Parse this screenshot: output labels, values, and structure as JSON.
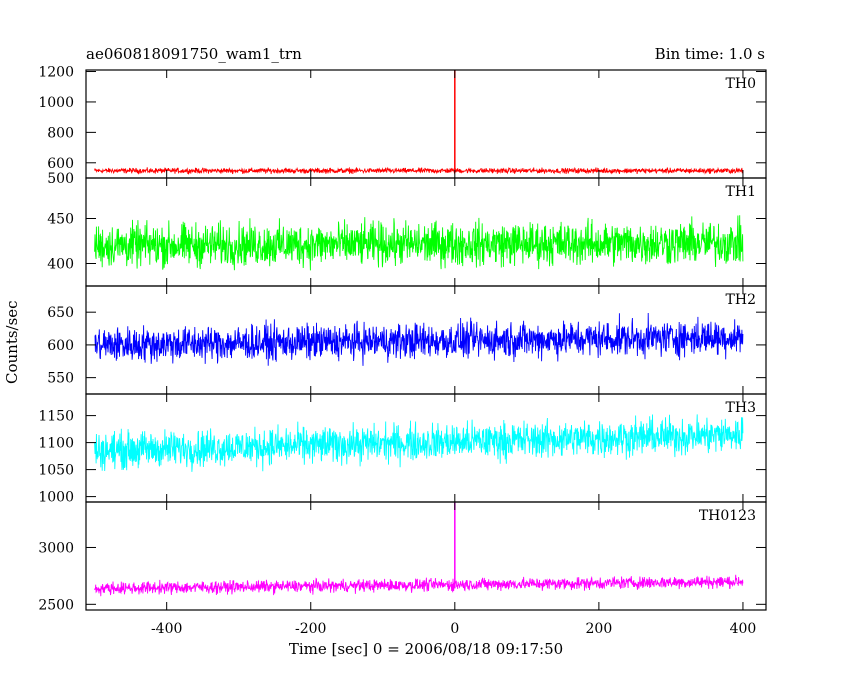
{
  "header": {
    "title": "ae060818091750_wam1_trn",
    "bin_time": "Bin time: 1.0 s"
  },
  "axes": {
    "ylabel": "Counts/sec",
    "xlabel": "Time [sec] 0 = 2006/08/18 09:17:50"
  },
  "chart_data": {
    "type": "line",
    "x": {
      "label": "Time [sec] 0 = 2006/08/18 09:17:50",
      "range": [
        -512,
        432
      ],
      "data_range": [
        -500,
        400
      ],
      "ticks": [
        -400,
        -200,
        0,
        200,
        400
      ]
    },
    "panels": [
      {
        "name": "TH0",
        "color": "#ff0000",
        "ylim": [
          500,
          1210
        ],
        "yticks": [
          500,
          600,
          800,
          1000,
          1200
        ],
        "baseline": 548,
        "noise_amplitude": 25,
        "spike": {
          "x": 0,
          "y": 1210
        },
        "trend": 0
      },
      {
        "name": "TH1",
        "color": "#00ff00",
        "ylim": [
          375,
          495
        ],
        "yticks": [
          400,
          450
        ],
        "baseline": 420,
        "noise_amplitude": 35,
        "spike": null,
        "trend": 3
      },
      {
        "name": "TH2",
        "color": "#0000ff",
        "ylim": [
          525,
          690
        ],
        "yticks": [
          550,
          600,
          650
        ],
        "baseline": 600,
        "noise_amplitude": 40,
        "spike": null,
        "trend": 12
      },
      {
        "name": "TH3",
        "color": "#00ffff",
        "ylim": [
          990,
          1190
        ],
        "yticks": [
          1000,
          1050,
          1100,
          1150
        ],
        "baseline": 1085,
        "noise_amplitude": 50,
        "spike": null,
        "trend": 30
      },
      {
        "name": "TH0123",
        "color": "#ff00ff",
        "ylim": [
          2450,
          3400
        ],
        "yticks": [
          2500,
          3000
        ],
        "baseline": 2640,
        "noise_amplitude": 80,
        "spike": {
          "x": 0,
          "y": 3400
        },
        "trend": 60
      }
    ]
  }
}
